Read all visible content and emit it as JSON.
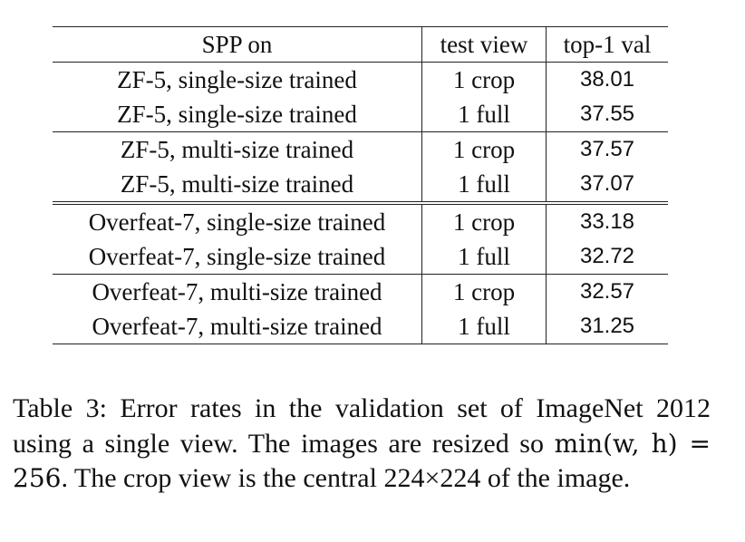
{
  "table": {
    "headers": [
      "SPP on",
      "test view",
      "top-1 val"
    ],
    "rows": [
      {
        "model": "ZF-5, single-size trained",
        "view": "1 crop",
        "value": "38.01",
        "bold": false
      },
      {
        "model": "ZF-5, single-size trained",
        "view": "1 full",
        "value": "37.55",
        "bold": true
      },
      {
        "model": "ZF-5, multi-size trained",
        "view": "1 crop",
        "value": "37.57",
        "bold": false
      },
      {
        "model": "ZF-5, multi-size trained",
        "view": "1 full",
        "value": "37.07",
        "bold": true
      },
      {
        "model": "Overfeat-7, single-size trained",
        "view": "1 crop",
        "value": "33.18",
        "bold": false
      },
      {
        "model": "Overfeat-7, single-size trained",
        "view": "1 full",
        "value": "32.72",
        "bold": true
      },
      {
        "model": "Overfeat-7, multi-size trained",
        "view": "1 crop",
        "value": "32.57",
        "bold": false
      },
      {
        "model": "Overfeat-7, multi-size trained",
        "view": "1 full",
        "value": "31.25",
        "bold": true
      }
    ]
  },
  "caption": {
    "text_before_math": "Table 3: Error rates in the validation set of ImageNet 2012 using a single view. The images are resized so ",
    "math": "min(w, h) = 256",
    "text_after_math": ". The crop view is the central 224×224 of the image."
  }
}
